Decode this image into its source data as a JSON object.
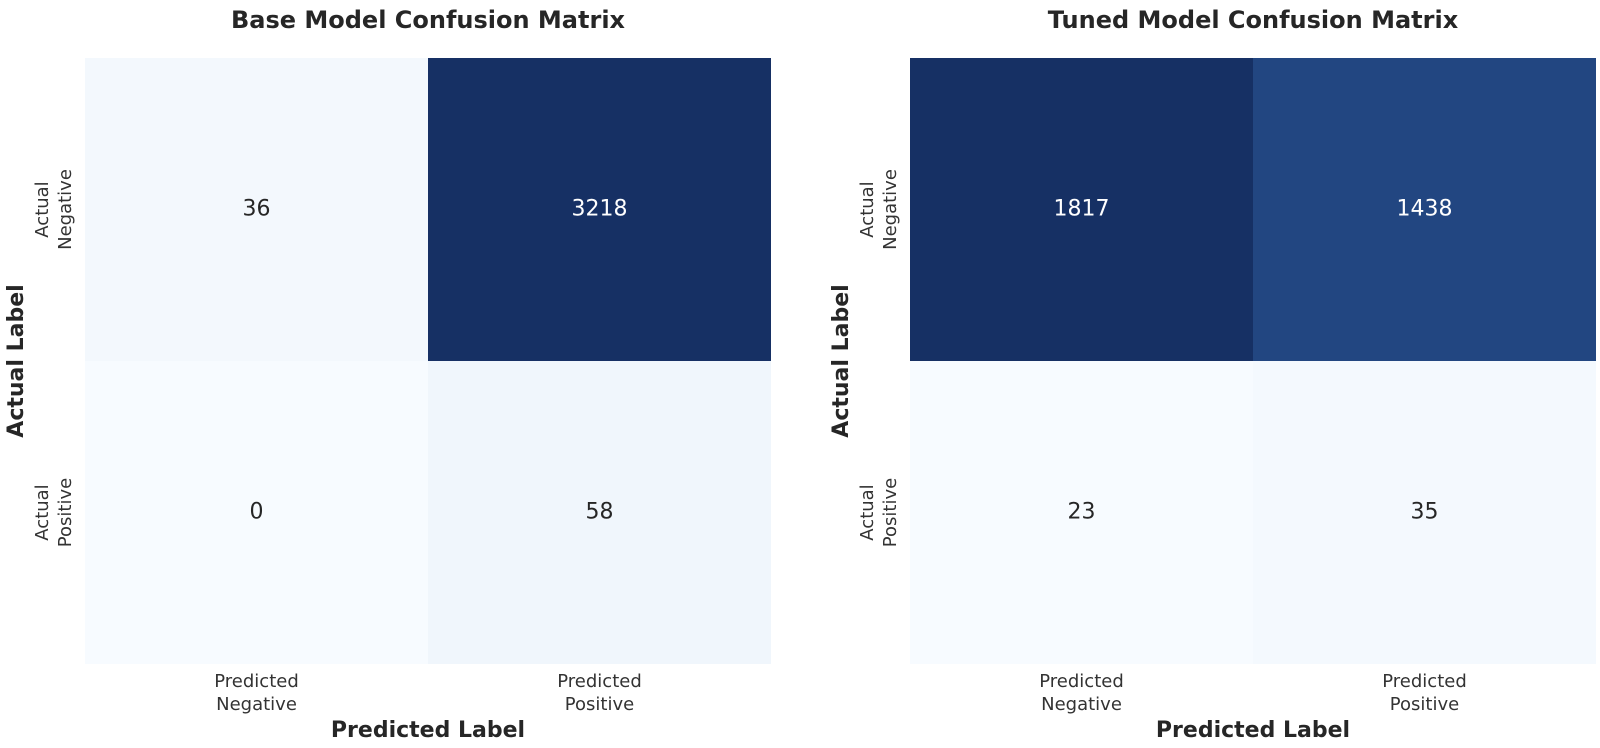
{
  "chart_data": [
    {
      "type": "heatmap",
      "title": "Base Model Confusion Matrix",
      "xlabel": "Predicted Label",
      "ylabel": "Actual Label",
      "x_categories": [
        "Predicted\nNegative",
        "Predicted\nPositive"
      ],
      "y_categories": [
        "Actual\nNegative",
        "Actual\nPositive"
      ],
      "values": [
        [
          36,
          3218
        ],
        [
          0,
          58
        ]
      ],
      "colormap": "Blues",
      "colorbar": false
    },
    {
      "type": "heatmap",
      "title": "Tuned Model Confusion Matrix",
      "xlabel": "Predicted Label",
      "ylabel": "Actual Label",
      "x_categories": [
        "Predicted\nNegative",
        "Predicted\nPositive"
      ],
      "y_categories": [
        "Actual\nNegative",
        "Actual\nPositive"
      ],
      "values": [
        [
          1817,
          1438
        ],
        [
          23,
          35
        ]
      ],
      "colormap": "Blues",
      "colorbar": false
    }
  ],
  "colors": {
    "low": "#f7fbff",
    "mid": "#3265a8",
    "high": "#163064",
    "text_dark": "#262626",
    "text_light": "#ffffff"
  }
}
